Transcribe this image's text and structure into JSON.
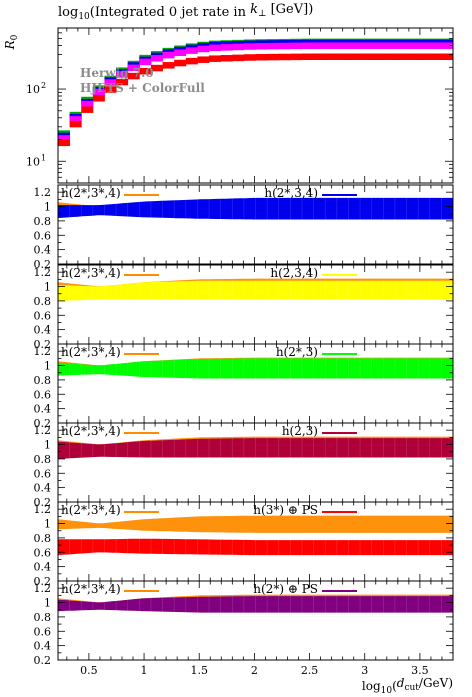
{
  "chart_data": [
    {
      "type": "area",
      "title": "log10(Integrated 0 jet rate in k⊥ [GeV])",
      "ylabel": "R0",
      "yscale": "log",
      "ylim": [
        5,
        700
      ],
      "yticks": [
        "10",
        "10"
      ],
      "yticks_exp": [
        "1",
        "2"
      ],
      "xlim": [
        0.22,
        3.8
      ],
      "legend": [
        "Herwig 7.0",
        "HJETS + ColorFull"
      ],
      "x": [
        0.2,
        0.3,
        0.4,
        0.5,
        0.6,
        0.7,
        0.8,
        0.9,
        1.0,
        1.2,
        1.4,
        1.6,
        2.0,
        2.5,
        3.0,
        3.5,
        3.8
      ],
      "series": [
        {
          "color": "#00aa00",
          "values": [
            14,
            28,
            48,
            75,
            105,
            140,
            180,
            220,
            265,
            330,
            380,
            420,
            440,
            450,
            450,
            450,
            450
          ]
        },
        {
          "color": "#0000ee",
          "values": [
            13,
            26,
            45,
            70,
            100,
            133,
            170,
            210,
            250,
            315,
            365,
            405,
            425,
            435,
            435,
            435,
            435
          ]
        },
        {
          "color": "#ff00ff",
          "values": [
            12,
            24,
            42,
            66,
            94,
            125,
            160,
            195,
            235,
            290,
            335,
            370,
            390,
            398,
            398,
            398,
            398
          ]
        },
        {
          "color": "#ff0000",
          "values": [
            10,
            21,
            36,
            55,
            77,
            100,
            125,
            150,
            175,
            210,
            240,
            262,
            275,
            280,
            280,
            280,
            280
          ]
        }
      ]
    },
    {
      "type": "area",
      "ylim": [
        0.2,
        1.3
      ],
      "yticks": [
        "0.2",
        "0.4",
        "0.6",
        "0.8",
        "1",
        "1.2"
      ],
      "reference_label": "h(2*,3*,4)",
      "reference_color": "#ff8c00",
      "label": "h(2*,3,4)",
      "color": "#0000ee",
      "x": [
        0.22,
        0.6,
        1.0,
        1.5,
        2.0,
        3.0,
        3.8
      ],
      "lower": [
        0.84,
        0.88,
        0.85,
        0.83,
        0.82,
        0.82,
        0.82
      ],
      "upper": [
        1.02,
        1.02,
        1.07,
        1.1,
        1.12,
        1.12,
        1.12
      ]
    },
    {
      "type": "area",
      "ylim": [
        0.2,
        1.3
      ],
      "yticks": [
        "0.2",
        "0.4",
        "0.6",
        "0.8",
        "1",
        "1.2"
      ],
      "reference_label": "h(2*,3*,4)",
      "reference_color": "#ff8c00",
      "label": "h(2,3,4)",
      "color": "#ffff00",
      "x": [
        0.22,
        0.6,
        1.0,
        1.5,
        2.0,
        3.0,
        3.8
      ],
      "lower": [
        0.8,
        0.82,
        0.82,
        0.82,
        0.82,
        0.82,
        0.82
      ],
      "upper": [
        1.02,
        1.0,
        1.06,
        1.08,
        1.08,
        1.08,
        1.08
      ]
    },
    {
      "type": "area",
      "ylim": [
        0.2,
        1.3
      ],
      "yticks": [
        "0.2",
        "0.4",
        "0.6",
        "0.8",
        "1",
        "1.2"
      ],
      "reference_label": "h(2*,3*,4)",
      "reference_color": "#ff8c00",
      "label": "h(2*,3)",
      "color": "#00ff00",
      "x": [
        0.22,
        0.6,
        1.0,
        1.5,
        2.0,
        3.0,
        3.8
      ],
      "lower": [
        0.86,
        0.88,
        0.84,
        0.82,
        0.82,
        0.82,
        0.82
      ],
      "upper": [
        1.04,
        1.0,
        1.06,
        1.09,
        1.1,
        1.1,
        1.1
      ]
    },
    {
      "type": "area",
      "ylim": [
        0.2,
        1.3
      ],
      "yticks": [
        "0.2",
        "0.4",
        "0.6",
        "0.8",
        "1",
        "1.2"
      ],
      "reference_label": "h(2*,3*,4)",
      "reference_color": "#ff8c00",
      "label": "h(2,3)",
      "color": "#b0003a",
      "x": [
        0.22,
        0.6,
        1.0,
        1.5,
        2.0,
        3.0,
        3.8
      ],
      "lower": [
        0.8,
        0.83,
        0.82,
        0.82,
        0.82,
        0.82,
        0.82
      ],
      "upper": [
        1.04,
        1.0,
        1.05,
        1.08,
        1.09,
        1.09,
        1.09
      ]
    },
    {
      "type": "area",
      "ylim": [
        0.2,
        1.3
      ],
      "yticks": [
        "0.2",
        "0.4",
        "0.6",
        "0.8",
        "1",
        "1.2"
      ],
      "reference_label": "h(2*,3*,4)",
      "reference_color": "#ff8c00",
      "label": "h(3*) ⊕ PS",
      "color": "#ff0000",
      "x": [
        0.22,
        0.6,
        1.0,
        1.5,
        2.0,
        3.0,
        3.8
      ],
      "lower": [
        0.56,
        0.6,
        0.58,
        0.57,
        0.56,
        0.56,
        0.56
      ],
      "upper": [
        0.78,
        0.78,
        0.79,
        0.78,
        0.77,
        0.77,
        0.77
      ]
    },
    {
      "type": "area",
      "ylim": [
        0.2,
        1.3
      ],
      "yticks": [
        "0.2",
        "0.4",
        "0.6",
        "0.8",
        "1",
        "1.2"
      ],
      "reference_label": "h(2*,3*,4)",
      "reference_color": "#ff8c00",
      "label": "h(2*) ⊕ PS",
      "color": "#800080",
      "x": [
        0.22,
        0.6,
        1.0,
        1.5,
        2.0,
        3.0,
        3.8
      ],
      "lower": [
        0.88,
        0.9,
        0.88,
        0.86,
        0.86,
        0.86,
        0.86
      ],
      "upper": [
        1.04,
        1.0,
        1.06,
        1.08,
        1.09,
        1.09,
        1.09
      ]
    }
  ],
  "reference_band": {
    "x": [
      0.22,
      0.6,
      1.0,
      1.5,
      2.0,
      3.0,
      3.8
    ],
    "lower": [
      0.92,
      0.94,
      0.9,
      0.88,
      0.87,
      0.87,
      0.87
    ],
    "upper": [
      1.06,
      1.0,
      1.06,
      1.1,
      1.11,
      1.11,
      1.11
    ]
  },
  "xaxis": {
    "ticks": [
      0.5,
      1,
      1.5,
      2,
      2.5,
      3,
      3.5
    ],
    "tick_labels": [
      "0.5",
      "1",
      "1.5",
      "2",
      "2.5",
      "3",
      "3.5"
    ],
    "label": "log10(dcut/GeV)"
  }
}
